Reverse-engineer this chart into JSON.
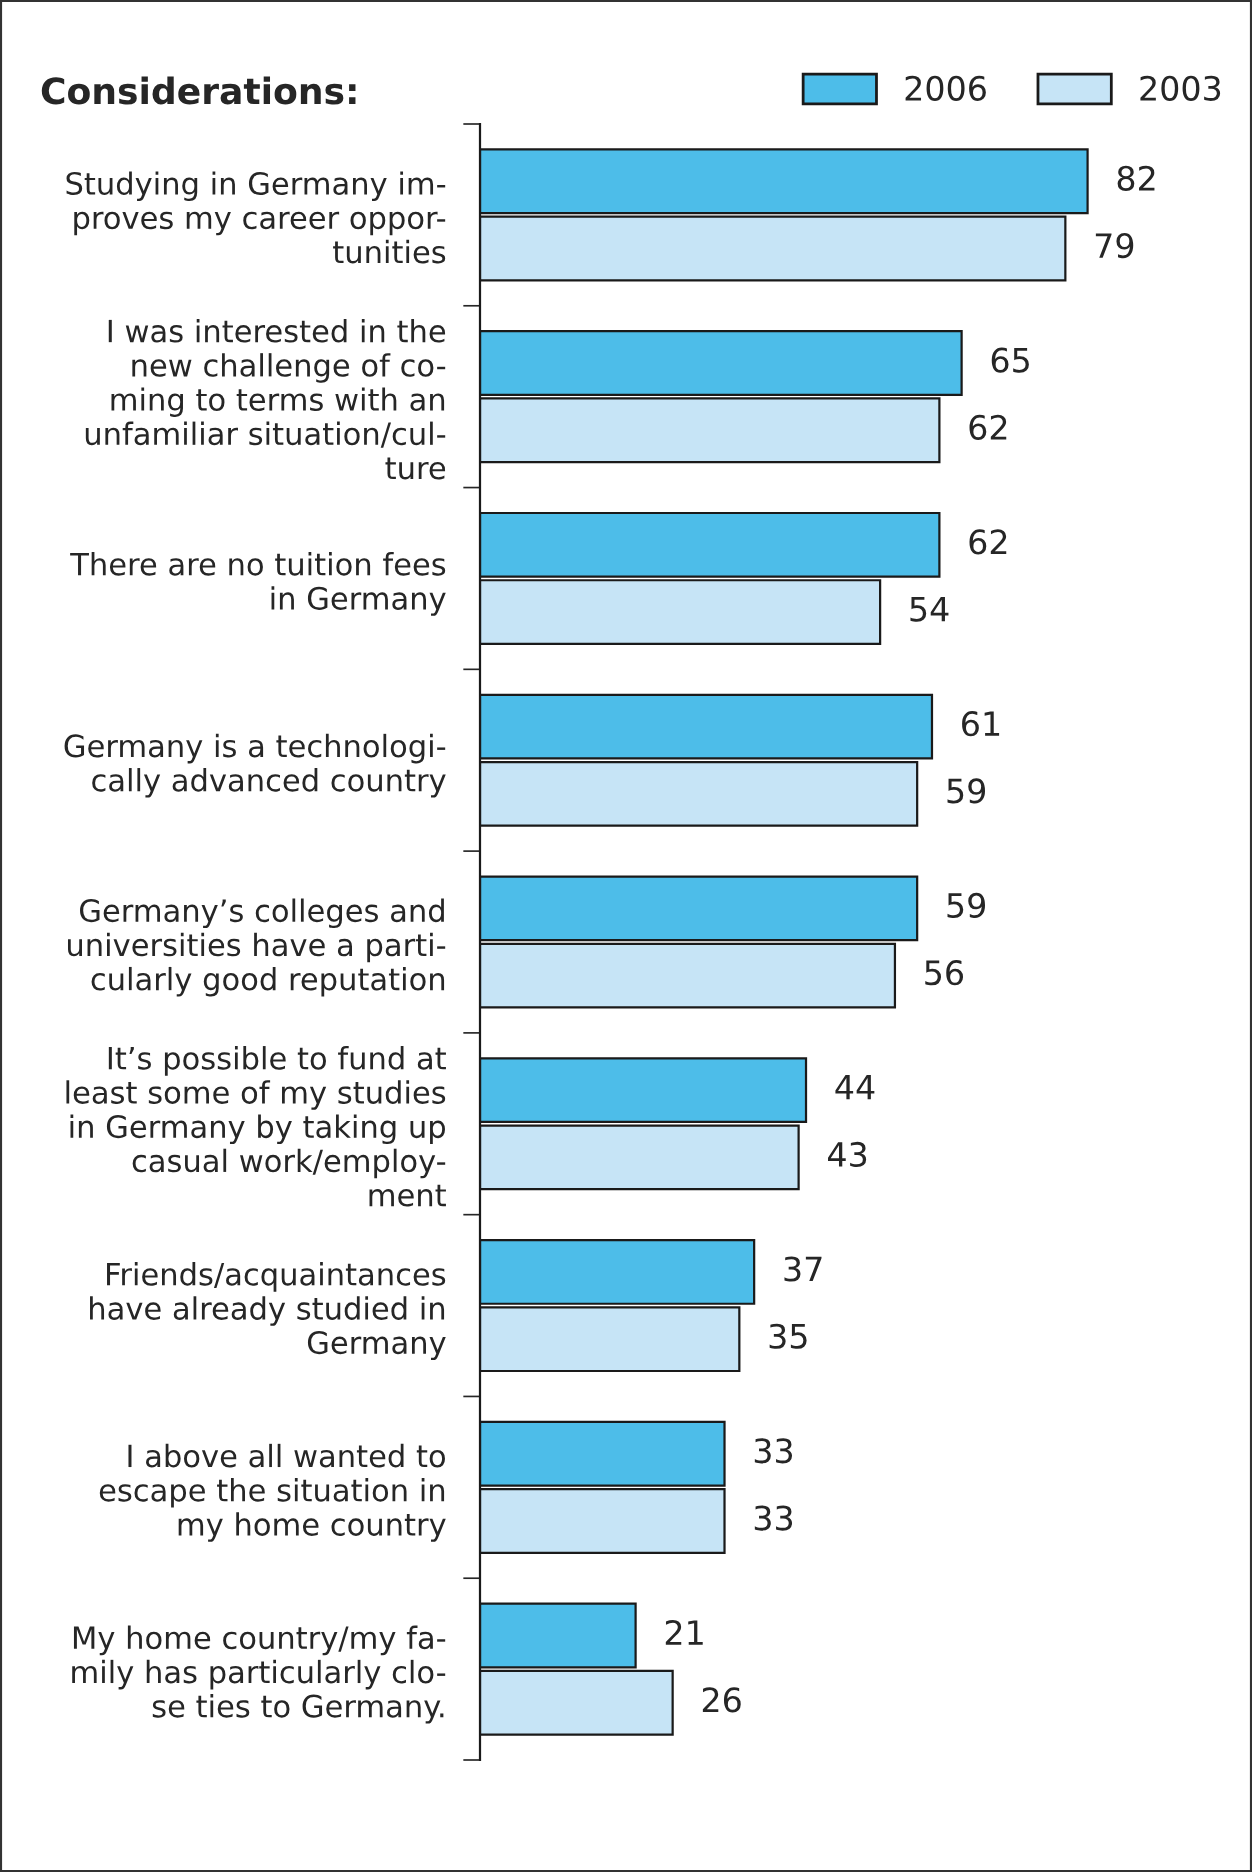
{
  "chart_data": {
    "type": "bar",
    "orientation": "horizontal",
    "title": "Considerations:",
    "categories": [
      "Studying in Germany im-\nproves my career oppor-\ntunities",
      "I was interested in the\nnew challenge of co-\nming to terms with an\nunfamiliar situation/cul-\nture",
      "There are no tuition fees\nin Germany",
      "Germany is a technologi-\ncally advanced country",
      "Germany’s colleges and\nuniversities have a parti-\ncularly good reputation",
      "It’s possible to fund at\nleast some of my studies\nin Germany by taking up\ncasual work/employ-\nment",
      "Friends/acquaintances\nhave already studied in\nGermany",
      "I above all wanted to\nescape the situation in\nmy home country",
      "My home country/my fa-\nmily has particularly clo-\nse ties to Germany."
    ],
    "series": [
      {
        "name": "2006",
        "color": "#4dbde9",
        "values": [
          82,
          65,
          62,
          61,
          59,
          44,
          37,
          33,
          21
        ]
      },
      {
        "name": "2003",
        "color": "#c6e4f6",
        "values": [
          79,
          62,
          54,
          59,
          56,
          43,
          35,
          33,
          26
        ]
      }
    ],
    "data_labels": true,
    "legend": "top right",
    "grid": false
  }
}
